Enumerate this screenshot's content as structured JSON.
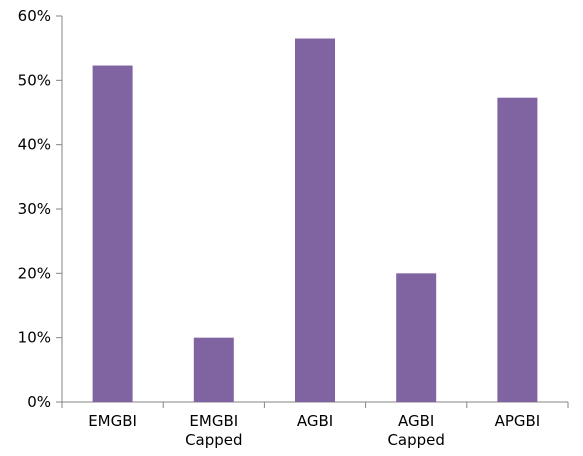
{
  "chart_data": {
    "type": "bar",
    "title": "",
    "xlabel": "",
    "ylabel": "",
    "categories": [
      [
        "EMGBI"
      ],
      [
        "EMGBI",
        "Capped"
      ],
      [
        "AGBI"
      ],
      [
        "AGBI",
        "Capped"
      ],
      [
        "APGBI"
      ]
    ],
    "values": [
      52.3,
      10.0,
      56.5,
      20.0,
      47.3
    ],
    "ylim": [
      0,
      60
    ],
    "yticks": [
      0,
      10,
      20,
      30,
      40,
      50,
      60
    ],
    "ytick_labels": [
      "0%",
      "10%",
      "20%",
      "30%",
      "40%",
      "50%",
      "60%"
    ],
    "grid": false,
    "legend": "none",
    "bar_color": "#8064a2",
    "axis_color": "#868686",
    "text_color": "#000000"
  }
}
